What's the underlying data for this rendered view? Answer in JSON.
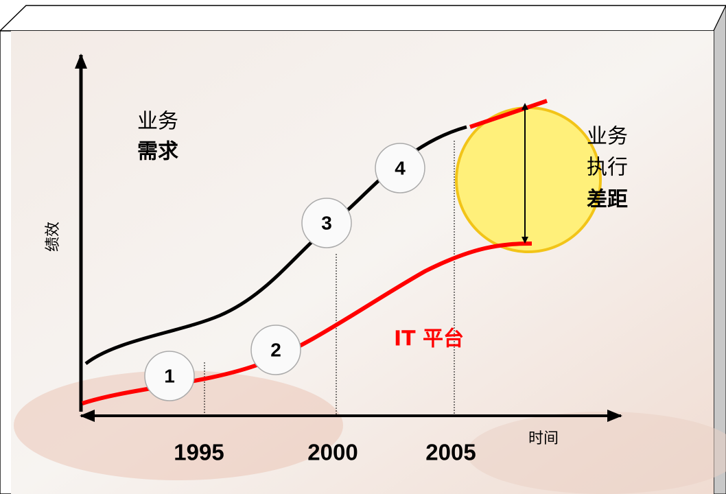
{
  "labels": {
    "demand": [
      "业务",
      "需求"
    ],
    "y_axis": "绩效",
    "x_axis": "时间",
    "years": [
      "1995",
      "2000",
      "2005"
    ],
    "steps": [
      "1",
      "2",
      "3",
      "4"
    ],
    "platform": "IT 平台",
    "gap": [
      "业务",
      "执行",
      "差距"
    ]
  }
}
